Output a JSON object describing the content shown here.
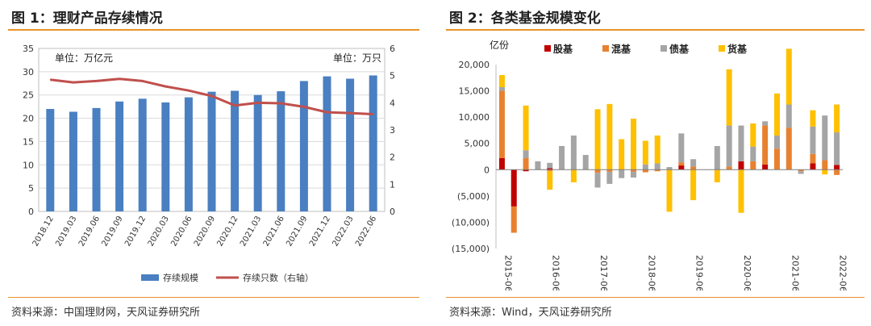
{
  "left": {
    "title": "图 1：理财产品存续情况",
    "source": "资料来源：中国理财网，天风证券研究所",
    "unit_left": "单位：万亿元",
    "unit_right": "单位：万只",
    "legend": [
      "存续规模",
      "存续只数（右轴）"
    ],
    "colors": {
      "bar": "#4a7fc1",
      "line": "#c0504d"
    },
    "chart_data": {
      "type": "bar",
      "categories": [
        "2018.12",
        "2019.03",
        "2019.06",
        "2019.09",
        "2019.12",
        "2020.03",
        "2020.06",
        "2020.09",
        "2020.12",
        "2021.03",
        "2021.06",
        "2021.09",
        "2021.12",
        "2022.03",
        "2022.06"
      ],
      "series": [
        {
          "name": "存续规模",
          "type": "bar",
          "axis": "left",
          "values": [
            22.0,
            21.4,
            22.2,
            23.6,
            24.2,
            23.4,
            24.5,
            25.7,
            25.9,
            25.0,
            25.8,
            28.0,
            29.0,
            28.5,
            29.2
          ]
        },
        {
          "name": "存续只数（右轴）",
          "type": "line",
          "axis": "right",
          "values": [
            4.85,
            4.75,
            4.8,
            4.88,
            4.8,
            4.6,
            4.45,
            4.25,
            3.9,
            4.0,
            3.98,
            3.85,
            3.65,
            3.62,
            3.58
          ]
        }
      ],
      "ylim_left": [
        0,
        35
      ],
      "ylim_right": [
        0,
        6
      ],
      "yticks_left": [
        "0",
        "5",
        "10",
        "15",
        "20",
        "25",
        "30",
        "35"
      ],
      "yticks_right": [
        "0",
        "1",
        "2",
        "3",
        "4",
        "5",
        "6"
      ],
      "grid": true,
      "legend_position": "bottom"
    }
  },
  "right": {
    "title": "图 2：各类基金规模变化",
    "source": "资料来源：Wind，天风证券研究所",
    "unit": "亿份",
    "colors": {
      "股基": "#c00000",
      "混基": "#e8812f",
      "债基": "#a5a5a5",
      "货基": "#ffc000"
    },
    "chart_data": {
      "type": "bar",
      "stacked": true,
      "x_tick_labels": [
        "2015-06",
        "2016-06",
        "2017-06",
        "2018-06",
        "2019-06",
        "2020-06",
        "2021-06",
        "2022-06"
      ],
      "categories": [
        "2015-06",
        "2015-09",
        "2015-12",
        "2016-03",
        "2016-06",
        "2016-09",
        "2016-12",
        "2017-03",
        "2017-06",
        "2017-09",
        "2017-12",
        "2018-03",
        "2018-06",
        "2018-09",
        "2018-12",
        "2019-03",
        "2019-06",
        "2019-09",
        "2019-12",
        "2020-03",
        "2020-06",
        "2020-09",
        "2020-12",
        "2021-03",
        "2021-06",
        "2021-09",
        "2021-12",
        "2022-03",
        "2022-06"
      ],
      "series": [
        {
          "name": "股基",
          "values": [
            2200,
            -7000,
            -300,
            0,
            300,
            0,
            0,
            0,
            0,
            0,
            0,
            0,
            0,
            0,
            0,
            800,
            0,
            0,
            0,
            0,
            1600,
            0,
            1000,
            0,
            0,
            0,
            1200,
            0,
            900
          ]
        },
        {
          "name": "混基",
          "values": [
            12800,
            -5000,
            2200,
            0,
            -300,
            0,
            0,
            0,
            -600,
            -400,
            0,
            -400,
            -500,
            -300,
            0,
            600,
            600,
            0,
            0,
            600,
            0,
            1600,
            7400,
            4000,
            8000,
            -300,
            1800,
            1800,
            -1000
          ]
        },
        {
          "name": "债基",
          "values": [
            700,
            0,
            1500,
            1600,
            1000,
            4500,
            6500,
            2800,
            -2800,
            -2300,
            -1600,
            -1100,
            1000,
            1200,
            500,
            5500,
            1400,
            0,
            4500,
            7800,
            6800,
            2800,
            800,
            2500,
            4400,
            -500,
            5200,
            8500,
            6200
          ]
        },
        {
          "name": "货基",
          "values": [
            2300,
            0,
            8500,
            0,
            -3500,
            0,
            -2400,
            0,
            11500,
            12500,
            5800,
            9700,
            4500,
            5300,
            -8000,
            0,
            -5800,
            0,
            -2400,
            10700,
            -8200,
            4400,
            0,
            8000,
            10600,
            0,
            3100,
            -900,
            5300
          ]
        }
      ],
      "ylim": [
        -15000,
        20000
      ],
      "yticks": [
        "(15,000)",
        "(10,000)",
        "(5,000)",
        "0",
        "5,000",
        "10,000",
        "15,000",
        "20,000"
      ],
      "grid": false,
      "legend_position": "top"
    }
  }
}
